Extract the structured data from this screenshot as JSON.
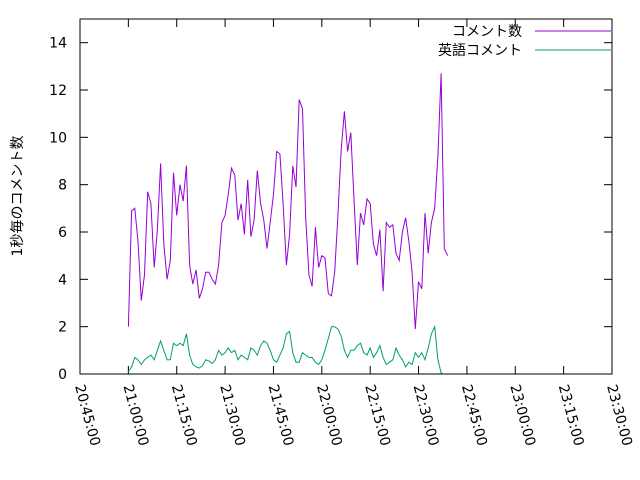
{
  "chart_data": {
    "type": "line",
    "title": "",
    "xlabel": "",
    "ylabel": "1秒毎のコメント数",
    "x_range": [
      "20:45:00",
      "23:30:00"
    ],
    "ylim": [
      0,
      15
    ],
    "y_ticks": [
      0,
      2,
      4,
      6,
      8,
      10,
      12,
      14
    ],
    "x_ticks": [
      "20:45:00",
      "21:00:00",
      "21:15:00",
      "21:30:00",
      "21:45:00",
      "22:00:00",
      "22:15:00",
      "22:30:00",
      "22:45:00",
      "23:00:00",
      "23:15:00",
      "23:30:00"
    ],
    "grid": false,
    "legend_position": "top-right",
    "series": [
      {
        "name": "コメント数",
        "color": "#9400d3",
        "points": [
          [
            "21:00:00",
            2.0
          ],
          [
            "21:01:00",
            6.9
          ],
          [
            "21:02:00",
            7.0
          ],
          [
            "21:03:00",
            5.6
          ],
          [
            "21:04:00",
            3.1
          ],
          [
            "21:05:00",
            4.2
          ],
          [
            "21:06:00",
            7.7
          ],
          [
            "21:07:00",
            7.2
          ],
          [
            "21:08:00",
            4.5
          ],
          [
            "21:09:00",
            6.1
          ],
          [
            "21:10:00",
            8.9
          ],
          [
            "21:11:00",
            5.5
          ],
          [
            "21:12:00",
            4.0
          ],
          [
            "21:13:00",
            4.8
          ],
          [
            "21:14:00",
            8.5
          ],
          [
            "21:15:00",
            6.7
          ],
          [
            "21:16:00",
            8.0
          ],
          [
            "21:17:00",
            7.3
          ],
          [
            "21:18:00",
            8.8
          ],
          [
            "21:19:00",
            4.6
          ],
          [
            "21:20:00",
            3.8
          ],
          [
            "21:21:00",
            4.4
          ],
          [
            "21:22:00",
            3.2
          ],
          [
            "21:23:00",
            3.6
          ],
          [
            "21:24:00",
            4.3
          ],
          [
            "21:25:00",
            4.3
          ],
          [
            "21:26:00",
            4.0
          ],
          [
            "21:27:00",
            3.8
          ],
          [
            "21:28:00",
            4.6
          ],
          [
            "21:29:00",
            6.4
          ],
          [
            "21:30:00",
            6.7
          ],
          [
            "21:31:00",
            7.6
          ],
          [
            "21:32:00",
            8.7
          ],
          [
            "21:33:00",
            8.4
          ],
          [
            "21:34:00",
            6.5
          ],
          [
            "21:35:00",
            7.2
          ],
          [
            "21:36:00",
            5.9
          ],
          [
            "21:37:00",
            8.2
          ],
          [
            "21:38:00",
            5.8
          ],
          [
            "21:39:00",
            6.5
          ],
          [
            "21:40:00",
            8.6
          ],
          [
            "21:41:00",
            7.2
          ],
          [
            "21:42:00",
            6.5
          ],
          [
            "21:43:00",
            5.3
          ],
          [
            "21:44:00",
            6.4
          ],
          [
            "21:45:00",
            7.6
          ],
          [
            "21:46:00",
            9.4
          ],
          [
            "21:47:00",
            9.3
          ],
          [
            "21:48:00",
            7.2
          ],
          [
            "21:49:00",
            4.6
          ],
          [
            "21:50:00",
            5.9
          ],
          [
            "21:51:00",
            8.8
          ],
          [
            "21:52:00",
            7.9
          ],
          [
            "21:53:00",
            11.6
          ],
          [
            "21:54:00",
            11.2
          ],
          [
            "21:55:00",
            6.6
          ],
          [
            "21:56:00",
            4.2
          ],
          [
            "21:57:00",
            3.7
          ],
          [
            "21:58:00",
            6.2
          ],
          [
            "21:59:00",
            4.5
          ],
          [
            "22:00:00",
            5.0
          ],
          [
            "22:01:00",
            4.9
          ],
          [
            "22:02:00",
            3.4
          ],
          [
            "22:03:00",
            3.3
          ],
          [
            "22:04:00",
            4.3
          ],
          [
            "22:05:00",
            6.7
          ],
          [
            "22:06:00",
            9.5
          ],
          [
            "22:07:00",
            11.1
          ],
          [
            "22:08:00",
            9.4
          ],
          [
            "22:09:00",
            10.2
          ],
          [
            "22:10:00",
            7.3
          ],
          [
            "22:11:00",
            4.6
          ],
          [
            "22:12:00",
            6.8
          ],
          [
            "22:13:00",
            6.3
          ],
          [
            "22:14:00",
            7.4
          ],
          [
            "22:15:00",
            7.2
          ],
          [
            "22:16:00",
            5.5
          ],
          [
            "22:17:00",
            5.0
          ],
          [
            "22:18:00",
            6.1
          ],
          [
            "22:19:00",
            3.5
          ],
          [
            "22:20:00",
            6.4
          ],
          [
            "22:21:00",
            6.2
          ],
          [
            "22:22:00",
            6.3
          ],
          [
            "22:23:00",
            5.1
          ],
          [
            "22:24:00",
            4.8
          ],
          [
            "22:25:00",
            6.0
          ],
          [
            "22:26:00",
            6.6
          ],
          [
            "22:27:00",
            5.6
          ],
          [
            "22:28:00",
            4.3
          ],
          [
            "22:29:00",
            1.9
          ],
          [
            "22:30:00",
            3.9
          ],
          [
            "22:31:00",
            3.6
          ],
          [
            "22:32:00",
            6.8
          ],
          [
            "22:33:00",
            5.1
          ],
          [
            "22:34:00",
            6.4
          ],
          [
            "22:35:00",
            7.0
          ],
          [
            "22:36:00",
            9.2
          ],
          [
            "22:37:00",
            12.7
          ],
          [
            "22:38:00",
            5.3
          ],
          [
            "22:39:00",
            5.0
          ]
        ]
      },
      {
        "name": "英語コメント",
        "color": "#009e73",
        "points": [
          [
            "21:00:00",
            0.1
          ],
          [
            "21:01:00",
            0.3
          ],
          [
            "21:02:00",
            0.7
          ],
          [
            "21:03:00",
            0.6
          ],
          [
            "21:04:00",
            0.4
          ],
          [
            "21:05:00",
            0.6
          ],
          [
            "21:06:00",
            0.7
          ],
          [
            "21:07:00",
            0.8
          ],
          [
            "21:08:00",
            0.6
          ],
          [
            "21:09:00",
            1.0
          ],
          [
            "21:10:00",
            1.4
          ],
          [
            "21:11:00",
            1.0
          ],
          [
            "21:12:00",
            0.6
          ],
          [
            "21:13:00",
            0.6
          ],
          [
            "21:14:00",
            1.3
          ],
          [
            "21:15:00",
            1.2
          ],
          [
            "21:16:00",
            1.3
          ],
          [
            "21:17:00",
            1.2
          ],
          [
            "21:18:00",
            1.7
          ],
          [
            "21:19:00",
            0.8
          ],
          [
            "21:20:00",
            0.4
          ],
          [
            "21:21:00",
            0.3
          ],
          [
            "21:22:00",
            0.25
          ],
          [
            "21:23:00",
            0.35
          ],
          [
            "21:24:00",
            0.6
          ],
          [
            "21:25:00",
            0.55
          ],
          [
            "21:26:00",
            0.45
          ],
          [
            "21:27:00",
            0.6
          ],
          [
            "21:28:00",
            1.0
          ],
          [
            "21:29:00",
            0.8
          ],
          [
            "21:30:00",
            0.9
          ],
          [
            "21:31:00",
            1.1
          ],
          [
            "21:32:00",
            0.9
          ],
          [
            "21:33:00",
            1.0
          ],
          [
            "21:34:00",
            0.6
          ],
          [
            "21:35:00",
            0.8
          ],
          [
            "21:36:00",
            0.7
          ],
          [
            "21:37:00",
            0.6
          ],
          [
            "21:38:00",
            1.1
          ],
          [
            "21:39:00",
            1.0
          ],
          [
            "21:40:00",
            0.8
          ],
          [
            "21:41:00",
            1.2
          ],
          [
            "21:42:00",
            1.4
          ],
          [
            "21:43:00",
            1.3
          ],
          [
            "21:44:00",
            1.0
          ],
          [
            "21:45:00",
            0.6
          ],
          [
            "21:46:00",
            0.5
          ],
          [
            "21:47:00",
            0.8
          ],
          [
            "21:48:00",
            1.1
          ],
          [
            "21:49:00",
            1.7
          ],
          [
            "21:50:00",
            1.8
          ],
          [
            "21:51:00",
            0.9
          ],
          [
            "21:52:00",
            0.5
          ],
          [
            "21:53:00",
            0.5
          ],
          [
            "21:54:00",
            0.9
          ],
          [
            "21:55:00",
            0.8
          ],
          [
            "21:56:00",
            0.7
          ],
          [
            "21:57:00",
            0.7
          ],
          [
            "21:58:00",
            0.5
          ],
          [
            "21:59:00",
            0.4
          ],
          [
            "22:00:00",
            0.6
          ],
          [
            "22:01:00",
            1.0
          ],
          [
            "22:02:00",
            1.5
          ],
          [
            "22:03:00",
            2.0
          ],
          [
            "22:04:00",
            2.0
          ],
          [
            "22:05:00",
            1.9
          ],
          [
            "22:06:00",
            1.6
          ],
          [
            "22:07:00",
            1.0
          ],
          [
            "22:08:00",
            0.7
          ],
          [
            "22:09:00",
            1.0
          ],
          [
            "22:10:00",
            1.0
          ],
          [
            "22:11:00",
            1.2
          ],
          [
            "22:12:00",
            1.3
          ],
          [
            "22:13:00",
            0.9
          ],
          [
            "22:14:00",
            0.8
          ],
          [
            "22:15:00",
            1.1
          ],
          [
            "22:16:00",
            0.7
          ],
          [
            "22:17:00",
            0.9
          ],
          [
            "22:18:00",
            1.2
          ],
          [
            "22:19:00",
            0.7
          ],
          [
            "22:20:00",
            0.4
          ],
          [
            "22:21:00",
            0.5
          ],
          [
            "22:22:00",
            0.6
          ],
          [
            "22:23:00",
            1.1
          ],
          [
            "22:24:00",
            0.8
          ],
          [
            "22:25:00",
            0.6
          ],
          [
            "22:26:00",
            0.3
          ],
          [
            "22:27:00",
            0.5
          ],
          [
            "22:28:00",
            0.4
          ],
          [
            "22:29:00",
            0.9
          ],
          [
            "22:30:00",
            0.7
          ],
          [
            "22:31:00",
            0.9
          ],
          [
            "22:32:00",
            0.6
          ],
          [
            "22:33:00",
            1.1
          ],
          [
            "22:34:00",
            1.7
          ],
          [
            "22:35:00",
            2.0
          ],
          [
            "22:36:00",
            0.6
          ],
          [
            "22:37:00",
            0.05
          ],
          [
            "22:38:00",
            0.0
          ]
        ]
      }
    ]
  }
}
